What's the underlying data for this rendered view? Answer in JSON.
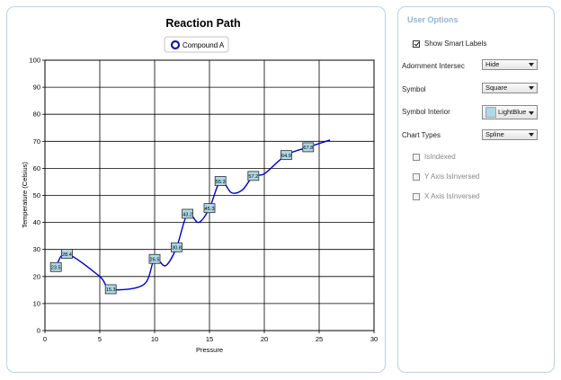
{
  "chart_data": {
    "type": "line",
    "style": "spline",
    "title": "Reaction Path",
    "xlabel": "Pressure",
    "ylabel": "Temperature (Celsius)",
    "xlim": [
      0,
      30
    ],
    "ylim": [
      0,
      100
    ],
    "x_ticks": [
      "0",
      "5",
      "10",
      "15",
      "20",
      "25",
      "30"
    ],
    "y_ticks": [
      "0",
      "10",
      "20",
      "30",
      "40",
      "50",
      "60",
      "70",
      "80",
      "90",
      "100"
    ],
    "grid": true,
    "legend": {
      "placement": "top-center"
    },
    "series": [
      {
        "name": "Compound A",
        "color": "#0000cc",
        "marker": "square",
        "marker_fill": "#add8e6",
        "x": [
          1,
          2,
          5,
          6,
          9,
          10,
          11,
          12,
          13,
          14,
          15,
          16,
          17,
          18,
          19,
          20,
          22,
          24,
          26
        ],
        "y": [
          23.5,
          28.4,
          20,
          15.3,
          17,
          26.5,
          24,
          30.8,
          43.2,
          40,
          45.3,
          55.3,
          51,
          52,
          57.2,
          58,
          64.9,
          67.8,
          70.5
        ],
        "point_labels": [
          "23.5",
          "28.4",
          "",
          "15.3",
          "",
          "26.5",
          "",
          "30.8",
          "43.2",
          "",
          "45.3",
          "55.3",
          "",
          "",
          "57.2",
          "",
          "64.9",
          "67.8",
          ""
        ]
      }
    ]
  },
  "options": {
    "title": "User Options",
    "show_smart_labels": {
      "label": "Show Smart Labels",
      "checked": true
    },
    "adornment_intersect": {
      "label": "Adornment Intersec",
      "value": "Hide"
    },
    "symbol": {
      "label": "Symbol",
      "value": "Square"
    },
    "symbol_interior": {
      "label": "Symbol Interior",
      "value": "LightBlue",
      "swatch_color": "#add8e6"
    },
    "chart_types": {
      "label": "Chart Types",
      "value": "Spline"
    },
    "is_indexed": {
      "label": "IsIndexed",
      "checked": false
    },
    "y_axis_inversed": {
      "label": "Y Axis IsInversed",
      "checked": false
    },
    "x_axis_inversed": {
      "label": "X Axis IsInversed",
      "checked": false
    }
  }
}
